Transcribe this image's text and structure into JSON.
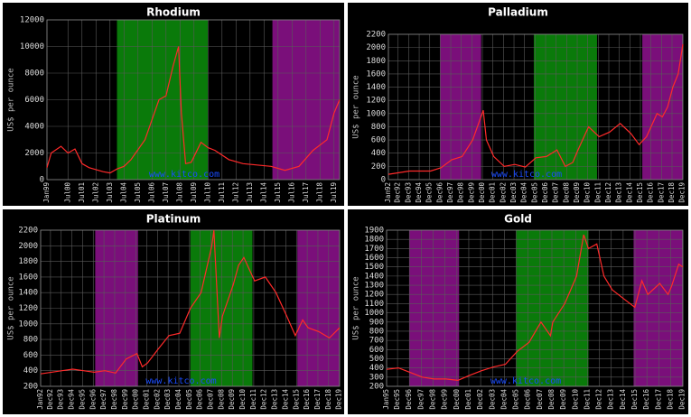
{
  "chart_data": [
    {
      "type": "line",
      "title": "Rhodium",
      "y_label": "US$ per ounce",
      "watermark": "www.kitco.com",
      "grid": true,
      "xlim": [
        1999,
        2019.9
      ],
      "ylim": [
        0,
        12000
      ],
      "yticks": [
        0,
        2000,
        4000,
        6000,
        8000,
        10000,
        12000
      ],
      "xticks": [
        {
          "value": 1999.0,
          "label": "Jan99"
        },
        {
          "value": 2000.5,
          "label": "Jul00"
        },
        {
          "value": 2001.5,
          "label": "Jul01"
        },
        {
          "value": 2002.5,
          "label": "Jul02"
        },
        {
          "value": 2003.5,
          "label": "Jul03"
        },
        {
          "value": 2004.5,
          "label": "Jul04"
        },
        {
          "value": 2005.5,
          "label": "Jul05"
        },
        {
          "value": 2006.5,
          "label": "Jul06"
        },
        {
          "value": 2007.5,
          "label": "Jul07"
        },
        {
          "value": 2008.5,
          "label": "Jul08"
        },
        {
          "value": 2009.5,
          "label": "Jul09"
        },
        {
          "value": 2010.5,
          "label": "Jul10"
        },
        {
          "value": 2011.5,
          "label": "Jul11"
        },
        {
          "value": 2012.5,
          "label": "Jul12"
        },
        {
          "value": 2013.5,
          "label": "Jul13"
        },
        {
          "value": 2014.5,
          "label": "Jul14"
        },
        {
          "value": 2015.5,
          "label": "Jul15"
        },
        {
          "value": 2016.5,
          "label": "Jul16"
        },
        {
          "value": 2017.5,
          "label": "Jul17"
        },
        {
          "value": 2018.5,
          "label": "Jul18"
        },
        {
          "value": 2019.5,
          "label": "Jul19"
        }
      ],
      "bands": [
        {
          "start": 2004.0,
          "end": 2010.5,
          "color": "#0a7a0a"
        },
        {
          "start": 2015.1,
          "end": 2019.9,
          "color": "#7a0f7a"
        }
      ],
      "series": [
        {
          "name": "Rhodium",
          "color": "#ff2a2a",
          "x": [
            1999,
            1999.3,
            2000,
            2000.5,
            2001,
            2001.5,
            2002,
            2003,
            2003.5,
            2004,
            2004.5,
            2005,
            2006,
            2006.5,
            2007,
            2007.5,
            2008,
            2008.4,
            2008.6,
            2008.9,
            2009.3,
            2010,
            2010.5,
            2011,
            2012,
            2013,
            2014,
            2015,
            2016,
            2017,
            2018,
            2019,
            2019.5,
            2019.9
          ],
          "values": [
            900,
            2000,
            2500,
            2000,
            2300,
            1200,
            900,
            600,
            500,
            800,
            1000,
            1500,
            3000,
            4500,
            6000,
            6300,
            8500,
            10000,
            5000,
            1200,
            1300,
            2800,
            2400,
            2200,
            1500,
            1200,
            1100,
            1000,
            700,
            1000,
            2200,
            3000,
            5000,
            6000
          ]
        }
      ]
    },
    {
      "type": "line",
      "title": "Palladium",
      "y_label": "US$ per ounce",
      "watermark": "www.kitco.com",
      "grid": true,
      "xlim": [
        1992,
        2019.95
      ],
      "ylim": [
        0,
        2200
      ],
      "yticks": [
        0,
        200,
        400,
        600,
        800,
        1000,
        1200,
        1400,
        1600,
        1800,
        2000,
        2200
      ],
      "xticks": [
        {
          "value": 1992.0,
          "label": "Jan92"
        },
        {
          "value": 1992.92,
          "label": "Dec92"
        },
        {
          "value": 1993.92,
          "label": "Dec93"
        },
        {
          "value": 1994.92,
          "label": "Dec94"
        },
        {
          "value": 1995.92,
          "label": "Dec95"
        },
        {
          "value": 1996.92,
          "label": "Dec96"
        },
        {
          "value": 1997.92,
          "label": "Dec97"
        },
        {
          "value": 1998.92,
          "label": "Dec98"
        },
        {
          "value": 1999.92,
          "label": "Dec99"
        },
        {
          "value": 2000.92,
          "label": "Dec00"
        },
        {
          "value": 2001.92,
          "label": "Dec01"
        },
        {
          "value": 2002.92,
          "label": "Dec02"
        },
        {
          "value": 2003.92,
          "label": "Dec03"
        },
        {
          "value": 2004.92,
          "label": "Dec04"
        },
        {
          "value": 2005.92,
          "label": "Dec05"
        },
        {
          "value": 2006.92,
          "label": "Dec06"
        },
        {
          "value": 2007.92,
          "label": "Dec07"
        },
        {
          "value": 2008.92,
          "label": "Dec08"
        },
        {
          "value": 2009.92,
          "label": "Dec09"
        },
        {
          "value": 2010.92,
          "label": "Dec10"
        },
        {
          "value": 2011.92,
          "label": "Dec11"
        },
        {
          "value": 2012.92,
          "label": "Dec12"
        },
        {
          "value": 2013.92,
          "label": "Dec13"
        },
        {
          "value": 2014.92,
          "label": "Dec14"
        },
        {
          "value": 2015.92,
          "label": "Dec15"
        },
        {
          "value": 2016.92,
          "label": "Dec16"
        },
        {
          "value": 2017.92,
          "label": "Dec17"
        },
        {
          "value": 2018.92,
          "label": "Dec18"
        },
        {
          "value": 2019.92,
          "label": "Dec19"
        }
      ],
      "bands": [
        {
          "start": 1996.9,
          "end": 2000.8,
          "color": "#7a0f7a"
        },
        {
          "start": 2005.8,
          "end": 2011.8,
          "color": "#0a7a0a"
        },
        {
          "start": 2016.1,
          "end": 2019.95,
          "color": "#7a0f7a"
        }
      ],
      "series": [
        {
          "name": "Palladium",
          "color": "#ff2a2a",
          "x": [
            1992,
            1994,
            1996,
            1997,
            1998,
            1999,
            2000,
            2001,
            2001.3,
            2002,
            2003,
            2004,
            2005,
            2006,
            2007,
            2008,
            2008.8,
            2009.5,
            2010,
            2011,
            2012,
            2013,
            2014,
            2015,
            2015.8,
            2016.5,
            2017.5,
            2018,
            2018.5,
            2019,
            2019.5,
            2019.95
          ],
          "values": [
            80,
            130,
            130,
            180,
            300,
            350,
            600,
            1050,
            600,
            350,
            200,
            230,
            190,
            330,
            350,
            450,
            200,
            260,
            450,
            800,
            650,
            720,
            850,
            700,
            530,
            650,
            1000,
            950,
            1100,
            1400,
            1600,
            2050
          ]
        }
      ]
    },
    {
      "type": "line",
      "title": "Platinum",
      "y_label": "US$ per ounce",
      "watermark": "www.kitco.com",
      "grid": true,
      "xlim": [
        1992,
        2019.95
      ],
      "ylim": [
        200,
        2200
      ],
      "yticks": [
        200,
        400,
        600,
        800,
        1000,
        1200,
        1400,
        1600,
        1800,
        2000,
        2200
      ],
      "xticks": [
        {
          "value": 1992.0,
          "label": "Jan92"
        },
        {
          "value": 1992.92,
          "label": "Dec92"
        },
        {
          "value": 1993.92,
          "label": "Dec93"
        },
        {
          "value": 1994.92,
          "label": "Dec94"
        },
        {
          "value": 1995.92,
          "label": "Dec95"
        },
        {
          "value": 1996.92,
          "label": "Dec96"
        },
        {
          "value": 1997.92,
          "label": "Dec97"
        },
        {
          "value": 1998.92,
          "label": "Dec98"
        },
        {
          "value": 1999.92,
          "label": "Dec99"
        },
        {
          "value": 2000.92,
          "label": "Dec00"
        },
        {
          "value": 2001.92,
          "label": "Dec01"
        },
        {
          "value": 2002.92,
          "label": "Dec02"
        },
        {
          "value": 2003.92,
          "label": "Dec03"
        },
        {
          "value": 2004.92,
          "label": "Dec04"
        },
        {
          "value": 2005.92,
          "label": "Dec05"
        },
        {
          "value": 2006.92,
          "label": "Dec06"
        },
        {
          "value": 2007.92,
          "label": "Dec07"
        },
        {
          "value": 2008.92,
          "label": "Dec08"
        },
        {
          "value": 2009.92,
          "label": "Dec09"
        },
        {
          "value": 2010.92,
          "label": "Dec10"
        },
        {
          "value": 2011.92,
          "label": "Dec11"
        },
        {
          "value": 2012.92,
          "label": "Dec12"
        },
        {
          "value": 2013.92,
          "label": "Dec13"
        },
        {
          "value": 2014.92,
          "label": "Dec14"
        },
        {
          "value": 2015.92,
          "label": "Dec15"
        },
        {
          "value": 2016.92,
          "label": "Dec16"
        },
        {
          "value": 2017.92,
          "label": "Dec17"
        },
        {
          "value": 2018.92,
          "label": "Dec18"
        },
        {
          "value": 2019.92,
          "label": "Dec19"
        }
      ],
      "bands": [
        {
          "start": 1997.1,
          "end": 2001.1,
          "color": "#7a0f7a"
        },
        {
          "start": 2006.0,
          "end": 2011.8,
          "color": "#0a7a0a"
        },
        {
          "start": 2016.0,
          "end": 2019.95,
          "color": "#7a0f7a"
        }
      ],
      "series": [
        {
          "name": "Platinum",
          "color": "#ff2a2a",
          "x": [
            1992,
            1994,
            1995,
            1996,
            1997,
            1998,
            1999,
            2000,
            2001,
            2001.5,
            2002,
            2003,
            2004,
            2005,
            2006,
            2006.5,
            2007,
            2008,
            2008.2,
            2008.7,
            2009,
            2010,
            2010.5,
            2011,
            2011.5,
            2012,
            2013,
            2014,
            2015,
            2015.8,
            2016.5,
            2017,
            2018,
            2019,
            2019.95
          ],
          "values": [
            360,
            400,
            420,
            400,
            380,
            400,
            370,
            550,
            620,
            450,
            500,
            680,
            850,
            880,
            1200,
            1300,
            1400,
            2000,
            2200,
            820,
            1100,
            1500,
            1750,
            1850,
            1700,
            1550,
            1600,
            1400,
            1100,
            850,
            1050,
            950,
            900,
            820,
            950
          ]
        }
      ]
    },
    {
      "type": "line",
      "title": "Gold",
      "y_label": "US$ per ounce",
      "watermark": "www.kitco.com",
      "grid": true,
      "xlim": [
        1995,
        2019.95
      ],
      "ylim": [
        200,
        1900
      ],
      "yticks": [
        200,
        300,
        400,
        500,
        600,
        700,
        800,
        900,
        1000,
        1100,
        1200,
        1300,
        1400,
        1500,
        1600,
        1700,
        1800,
        1900
      ],
      "xticks": [
        {
          "value": 1995.0,
          "label": "Jan95"
        },
        {
          "value": 1995.92,
          "label": "Dec95"
        },
        {
          "value": 1996.92,
          "label": "Dec96"
        },
        {
          "value": 1997.92,
          "label": "Dec97"
        },
        {
          "value": 1998.92,
          "label": "Dec98"
        },
        {
          "value": 1999.92,
          "label": "Dec99"
        },
        {
          "value": 2000.92,
          "label": "Dec00"
        },
        {
          "value": 2001.92,
          "label": "Dec01"
        },
        {
          "value": 2002.92,
          "label": "Dec02"
        },
        {
          "value": 2003.92,
          "label": "Dec03"
        },
        {
          "value": 2004.92,
          "label": "Dec04"
        },
        {
          "value": 2005.92,
          "label": "Dec05"
        },
        {
          "value": 2006.92,
          "label": "Dec06"
        },
        {
          "value": 2007.92,
          "label": "Dec07"
        },
        {
          "value": 2008.92,
          "label": "Dec08"
        },
        {
          "value": 2009.92,
          "label": "Dec09"
        },
        {
          "value": 2010.92,
          "label": "Dec10"
        },
        {
          "value": 2011.92,
          "label": "Dec11"
        },
        {
          "value": 2012.92,
          "label": "Dec12"
        },
        {
          "value": 2013.92,
          "label": "Dec13"
        },
        {
          "value": 2014.92,
          "label": "Dec14"
        },
        {
          "value": 2015.92,
          "label": "Dec15"
        },
        {
          "value": 2016.92,
          "label": "Dec16"
        },
        {
          "value": 2017.92,
          "label": "Dec17"
        },
        {
          "value": 2018.92,
          "label": "Dec18"
        },
        {
          "value": 2019.92,
          "label": "Dec19"
        }
      ],
      "bands": [
        {
          "start": 1996.9,
          "end": 2001.1,
          "color": "#7a0f7a"
        },
        {
          "start": 2005.9,
          "end": 2012.0,
          "color": "#0a7a0a"
        },
        {
          "start": 2015.8,
          "end": 2019.95,
          "color": "#7a0f7a"
        }
      ],
      "series": [
        {
          "name": "Gold",
          "color": "#ff2a2a",
          "x": [
            1995,
            1996,
            1997,
            1998,
            1999,
            2000,
            2001,
            2002,
            2003,
            2004,
            2005,
            2006,
            2007,
            2008,
            2008.8,
            2009,
            2010,
            2010.5,
            2011,
            2011.6,
            2012,
            2012.7,
            2013.3,
            2014,
            2015,
            2015.9,
            2016.5,
            2017,
            2018,
            2018.7,
            2019,
            2019.6,
            2019.95
          ],
          "values": [
            385,
            400,
            350,
            300,
            280,
            280,
            265,
            320,
            370,
            410,
            440,
            580,
            680,
            900,
            750,
            900,
            1100,
            1250,
            1400,
            1850,
            1700,
            1750,
            1400,
            1250,
            1150,
            1060,
            1350,
            1200,
            1320,
            1200,
            1290,
            1530,
            1500
          ]
        }
      ]
    }
  ]
}
